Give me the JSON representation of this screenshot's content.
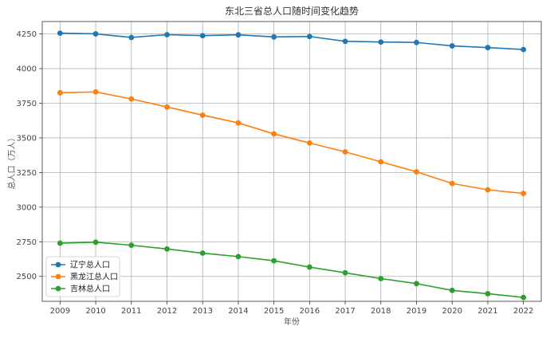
{
  "chart_data": {
    "type": "line",
    "title": "东北三省总人口随时间变化趋势",
    "xlabel": "年份",
    "ylabel": "总人口（万人）",
    "x": [
      2009,
      2010,
      2011,
      2012,
      2013,
      2014,
      2015,
      2016,
      2017,
      2018,
      2019,
      2020,
      2021,
      2022
    ],
    "xticks": [
      "2009",
      "2010",
      "2011",
      "2012",
      "2013",
      "2014",
      "2015",
      "2016",
      "2017",
      "2018",
      "2019",
      "2020",
      "2021",
      "2022"
    ],
    "yticks": [
      2500,
      2750,
      3000,
      3250,
      3500,
      3750,
      4000,
      4250
    ],
    "xlim": [
      2008.5,
      2022.5
    ],
    "ylim": [
      2320,
      4340
    ],
    "grid": true,
    "legend_position": "lower-left",
    "series": [
      {
        "name": "辽宁总人口",
        "color": "#1f77b4",
        "values": [
          4256,
          4251,
          4225,
          4245,
          4238,
          4244,
          4229,
          4232,
          4197,
          4192,
          4189,
          4164,
          4152,
          4138
        ]
      },
      {
        "name": "黑龙江总人口",
        "color": "#ff7f0e",
        "values": [
          3826,
          3832,
          3781,
          3723,
          3664,
          3608,
          3529,
          3463,
          3399,
          3327,
          3255,
          3171,
          3125,
          3099
        ]
      },
      {
        "name": "吉林总人口",
        "color": "#2ca02c",
        "values": [
          2740,
          2747,
          2725,
          2698,
          2668,
          2643,
          2613,
          2567,
          2526,
          2484,
          2448,
          2399,
          2375,
          2348
        ]
      }
    ]
  }
}
